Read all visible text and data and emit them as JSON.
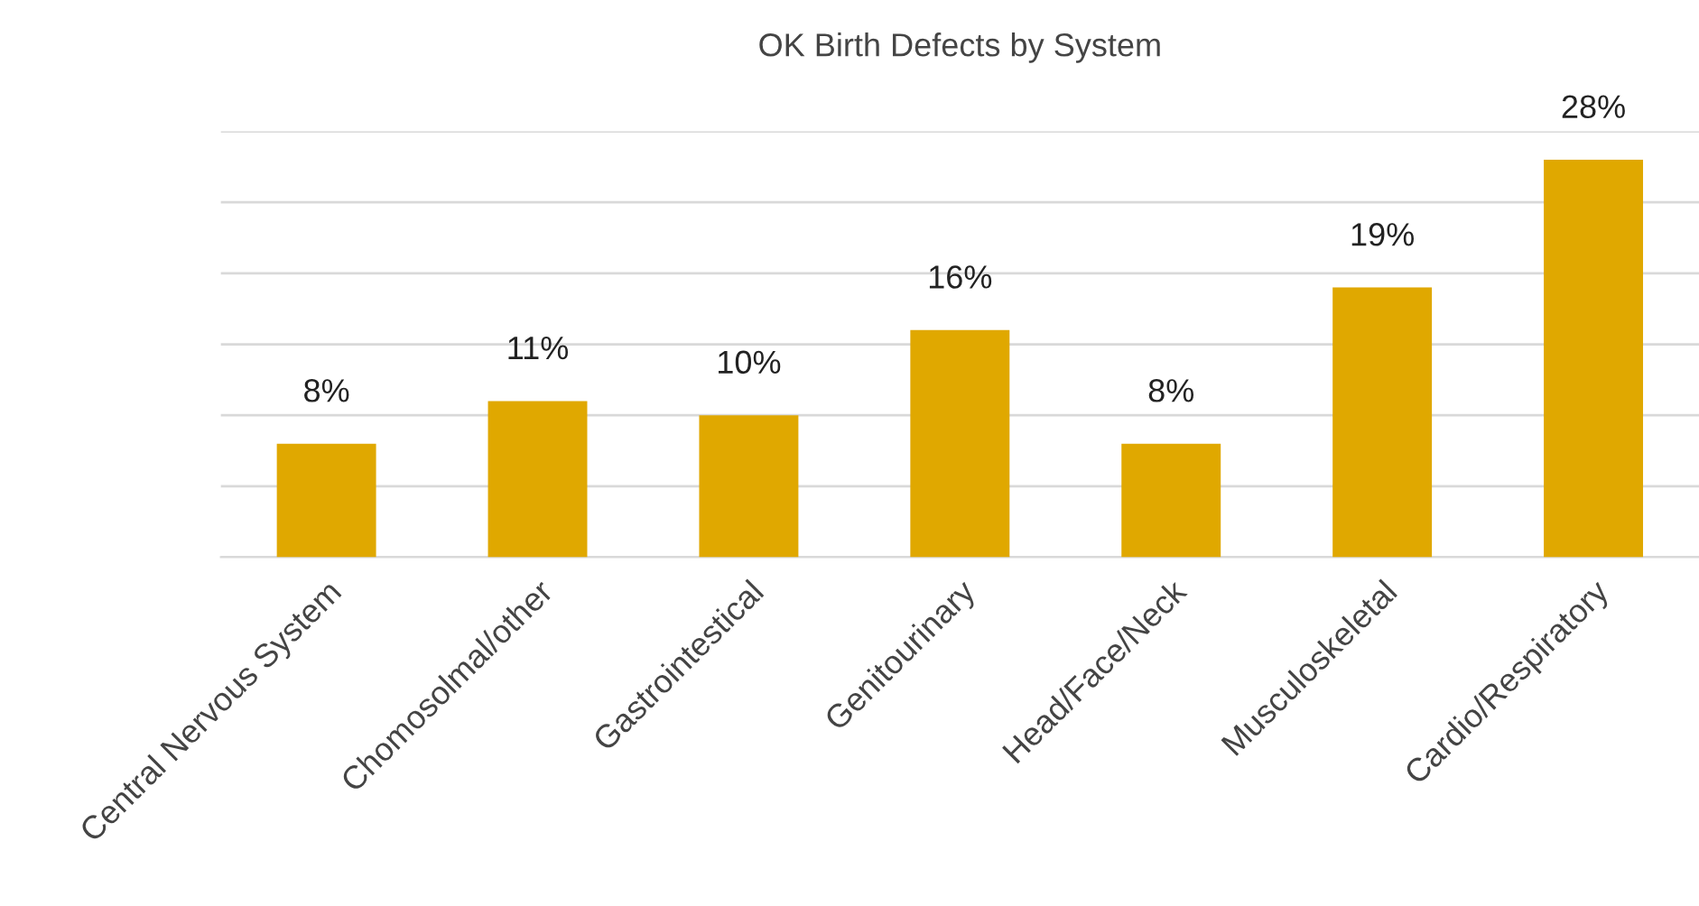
{
  "chart_data": {
    "type": "bar",
    "title": "OK Birth Defects by System",
    "categories": [
      "Central Nervous System",
      "Chomosolmal/other",
      "Gastrointestical",
      "Genitourinary",
      "Head/Face/Neck",
      "Musculoskeletal",
      "Cardio/Respiratory"
    ],
    "values": [
      8,
      11,
      10,
      16,
      8,
      19,
      28
    ],
    "value_labels": [
      "8%",
      "11%",
      "10%",
      "16%",
      "8%",
      "19%",
      "28%"
    ],
    "color": "#e0a800",
    "ylim": [
      0,
      30
    ],
    "yticks": [
      {
        "value": 0,
        "label": null
      },
      {
        "value": 5,
        "label": null
      },
      {
        "value": 10,
        "label": null
      },
      {
        "value": 15,
        "label": null
      },
      {
        "value": 20,
        "label": null
      },
      {
        "value": 25,
        "label": null
      },
      {
        "value": 30,
        "label": null
      }
    ],
    "grid": "y",
    "tick_labels": "x",
    "legend": false
  }
}
